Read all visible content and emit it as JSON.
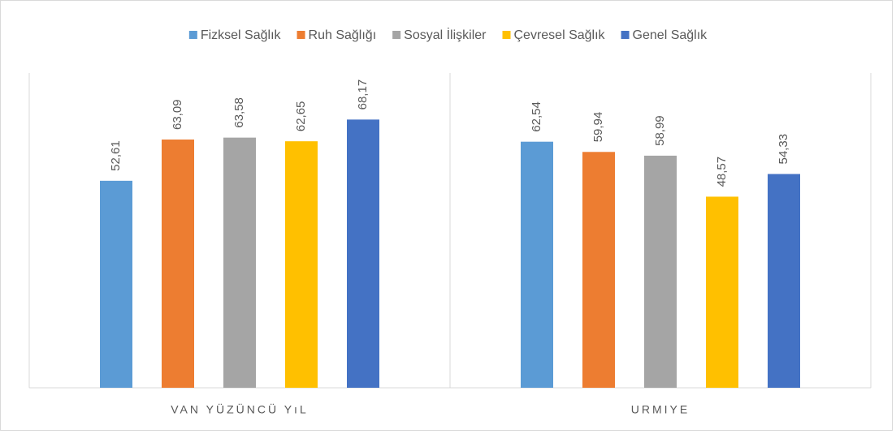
{
  "chart_data": {
    "type": "bar",
    "categories": [
      "VAN YÜZÜNCÜ YıL",
      "URMIYE"
    ],
    "series": [
      {
        "name": "Fizksel Sağlık",
        "color": "#5b9bd5",
        "values": [
          52.61,
          62.54
        ],
        "value_labels": [
          "52,61",
          "62,54"
        ]
      },
      {
        "name": "Ruh Sağlığı",
        "color": "#ed7d31",
        "values": [
          63.09,
          59.94
        ],
        "value_labels": [
          "63,09",
          "59,94"
        ]
      },
      {
        "name": "Sosyal İlişkiler",
        "color": "#a5a5a5",
        "values": [
          63.58,
          58.99
        ],
        "value_labels": [
          "63,58",
          "58,99"
        ]
      },
      {
        "name": "Çevresel Sağlık",
        "color": "#ffc000",
        "values": [
          62.65,
          48.57
        ],
        "value_labels": [
          "62,65",
          "48,57"
        ]
      },
      {
        "name": "Genel Sağlık",
        "color": "#4472c4",
        "values": [
          68.17,
          54.33
        ],
        "value_labels": [
          "68,17",
          "54,33"
        ]
      }
    ],
    "ylim": [
      0,
      80
    ],
    "legend": "top"
  }
}
